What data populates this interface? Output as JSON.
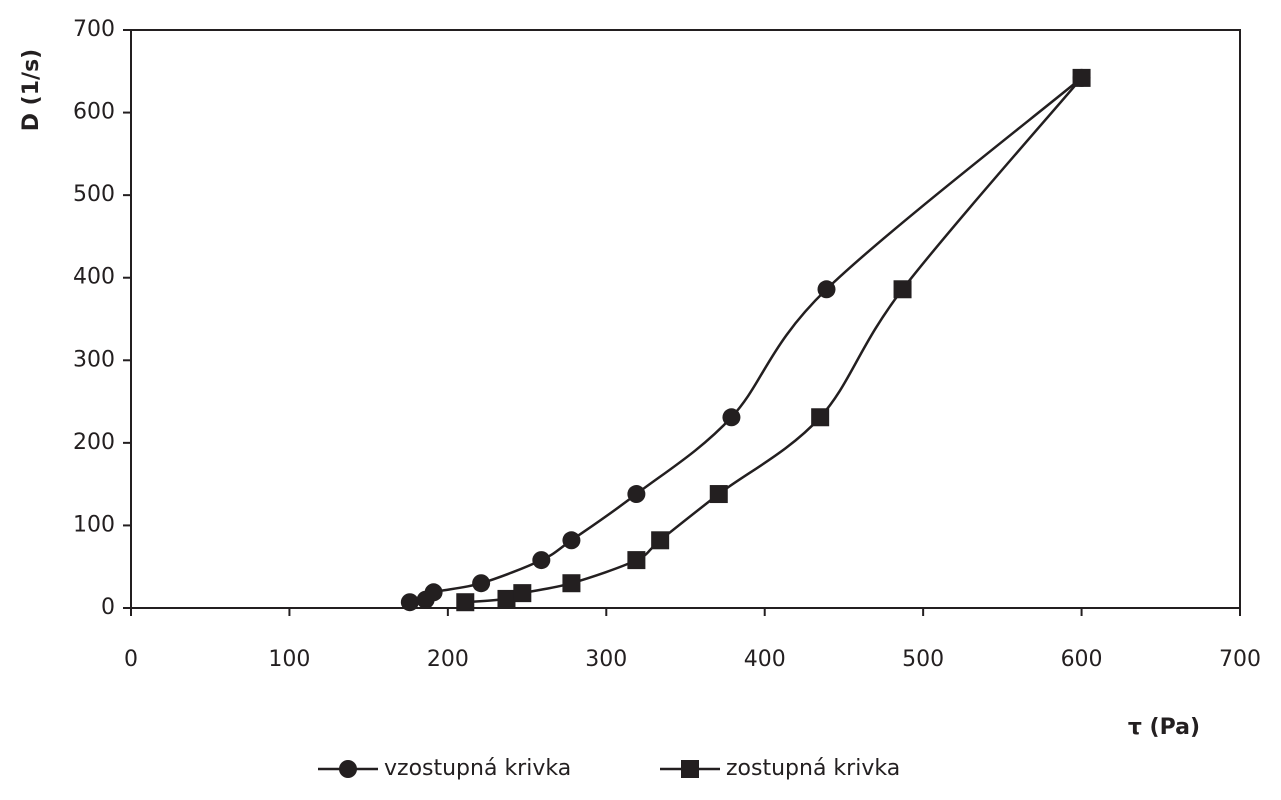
{
  "chart_data": {
    "type": "scatter",
    "smooth": true,
    "grid": false,
    "xlabel": "τ (Pa)",
    "ylabel": "D (1/s)",
    "xlim": [
      0,
      700
    ],
    "xticks": [
      0,
      100,
      200,
      300,
      400,
      500,
      600,
      700
    ],
    "ylim": [
      0,
      700
    ],
    "yticks": [
      0,
      100,
      200,
      300,
      400,
      500,
      600,
      700
    ],
    "series": [
      {
        "name": "vzostupná krivka",
        "marker": "circle",
        "color": "#231f20",
        "x": [
          176,
          186,
          191,
          221,
          259,
          278,
          319,
          379,
          439,
          600
        ],
        "values": [
          7,
          10,
          19,
          30,
          58,
          82,
          138,
          231,
          386,
          642
        ]
      },
      {
        "name": "zostupná krivka",
        "marker": "square",
        "color": "#231f20",
        "x": [
          211,
          237,
          247,
          278,
          319,
          334,
          371,
          435,
          487,
          600
        ],
        "values": [
          7,
          11,
          18,
          30,
          58,
          82,
          138,
          231,
          386,
          642
        ]
      }
    ]
  }
}
